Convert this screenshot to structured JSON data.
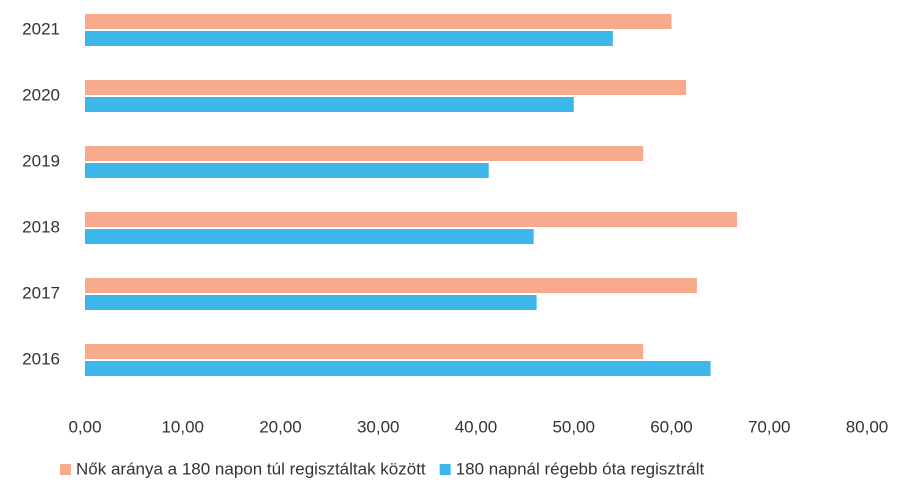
{
  "chart_data": {
    "type": "hbar",
    "categories": [
      "2021",
      "2020",
      "2019",
      "2018",
      "2017",
      "2016"
    ],
    "series": [
      {
        "name": "Nők aránya a 180 napon túl regisztáltak között",
        "color": "#f8aa8c",
        "values": [
          60.0,
          61.5,
          57.1,
          66.7,
          62.6,
          57.1
        ]
      },
      {
        "name": "180 napnál régebb óta regisztrált",
        "color": "#3db6ea",
        "values": [
          54.0,
          50.0,
          41.3,
          45.9,
          46.2,
          64.0
        ]
      }
    ],
    "xlim": [
      0,
      80
    ],
    "xticks": [
      {
        "value": 0,
        "label": "0,00"
      },
      {
        "value": 10,
        "label": "10,00"
      },
      {
        "value": 20,
        "label": "20,00"
      },
      {
        "value": 30,
        "label": "30,00"
      },
      {
        "value": 40,
        "label": "40,00"
      },
      {
        "value": 50,
        "label": "50,00"
      },
      {
        "value": 60,
        "label": "60,00"
      },
      {
        "value": 70,
        "label": "70,00"
      },
      {
        "value": 80,
        "label": "80,00"
      }
    ],
    "grid": false,
    "legend": "bottom"
  }
}
